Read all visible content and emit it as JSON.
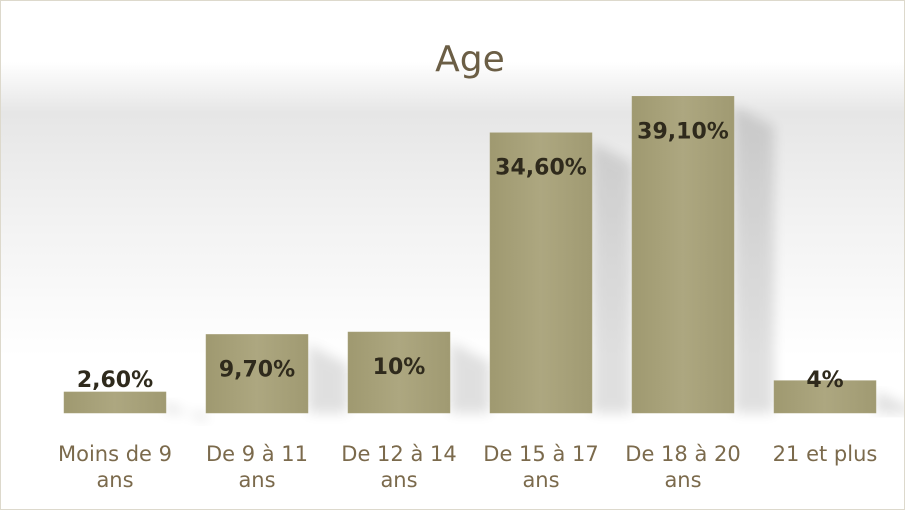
{
  "chart_data": {
    "type": "bar",
    "title": "Age",
    "categories": [
      "Moins de 9 ans",
      "De 9 à 11 ans",
      "De 12 à 14 ans",
      "De 15 à 17 ans",
      "De 18 à 20 ans",
      "21 et plus"
    ],
    "values": [
      2.6,
      9.7,
      10,
      34.6,
      39.1,
      4
    ],
    "value_labels": [
      "2,60%",
      "9,70%",
      "10%",
      "34,60%",
      "39,10%",
      "4%"
    ],
    "color": "#a8a27a"
  }
}
